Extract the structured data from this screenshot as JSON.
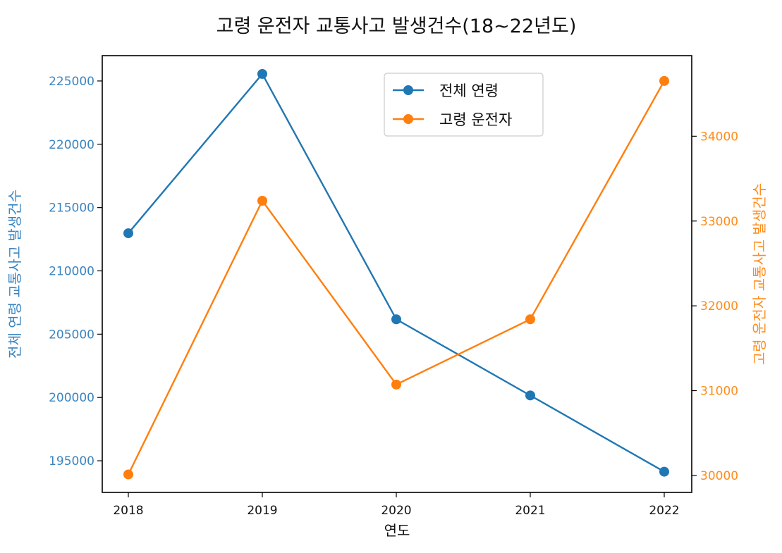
{
  "chart_data": {
    "type": "line",
    "title": "고령 운전자 교통사고 발생건수(18~22년도)",
    "xlabel": "연도",
    "ylabel_left": "전체 연령 교통사고 발생건수",
    "ylabel_right": "고령 운전자 교통사고 발생건수",
    "categories": [
      "2018",
      "2019",
      "2020",
      "2021",
      "2022"
    ],
    "left_axis": {
      "ylim": [
        192500,
        227000
      ],
      "ticks": [
        195000,
        200000,
        205000,
        210000,
        215000,
        220000,
        225000
      ],
      "color": "#3a85c0"
    },
    "right_axis": {
      "ylim": [
        29800,
        34950
      ],
      "ticks": [
        30000,
        31000,
        32000,
        33000,
        34000
      ],
      "color": "#ff8c1a"
    },
    "series": [
      {
        "name": "전체 연령",
        "axis": "left",
        "color": "#1f77b4",
        "values": [
          212973,
          225555,
          206174,
          200159,
          194138
        ]
      },
      {
        "name": "고령 운전자",
        "axis": "right",
        "color": "#ff7f0e",
        "values": [
          30012,
          33239,
          31072,
          31841,
          34652
        ]
      }
    ],
    "legend_position": "upper-center",
    "grid": false
  }
}
